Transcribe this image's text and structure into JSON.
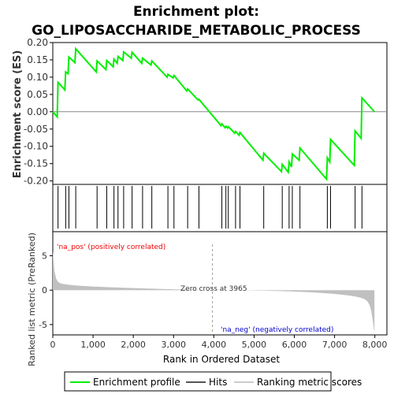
{
  "chart_data": {
    "type": "line",
    "title_line1": "Enrichment plot:",
    "title_line2": "GO_LIPOSACCHARIDE_METABOLIC_PROCESS",
    "es_ylabel": "Enrichment score (ES)",
    "rank_ylabel": "Ranked list metric (PreRanked)",
    "xlabel": "Rank in Ordered Dataset",
    "es_ylim": [
      -0.21,
      0.2
    ],
    "es_yticks": [
      "0.20",
      "0.15",
      "0.10",
      "0.05",
      "0.00",
      "-0.05",
      "-0.10",
      "-0.15",
      "-0.20"
    ],
    "es_ytick_values": [
      0.2,
      0.15,
      0.1,
      0.05,
      0.0,
      -0.05,
      -0.1,
      -0.15,
      -0.2
    ],
    "rank_ylim": [
      -6.5,
      8.5
    ],
    "rank_yticks": [
      "5",
      "0",
      "-5"
    ],
    "rank_ytick_values": [
      5,
      0,
      -5
    ],
    "xlim": [
      0,
      8300
    ],
    "xticks": [
      "0",
      "1,000",
      "2,000",
      "3,000",
      "4,000",
      "5,000",
      "6,000",
      "7,000",
      "8,000"
    ],
    "xtick_values": [
      0,
      1000,
      2000,
      3000,
      4000,
      5000,
      6000,
      7000,
      8000
    ],
    "hits": [
      130,
      320,
      400,
      570,
      1100,
      1340,
      1520,
      1620,
      1760,
      1970,
      2230,
      2460,
      2860,
      3010,
      3350,
      3630,
      4200,
      4300,
      4360,
      4540,
      4650,
      5240,
      5700,
      5870,
      5950,
      6140,
      6820,
      6900,
      7510,
      7680
    ],
    "enrichment_profile": [
      [
        0,
        0.0
      ],
      [
        110,
        -0.015
      ],
      [
        130,
        0.085
      ],
      [
        300,
        0.063
      ],
      [
        320,
        0.115
      ],
      [
        380,
        0.11
      ],
      [
        400,
        0.158
      ],
      [
        550,
        0.142
      ],
      [
        570,
        0.182
      ],
      [
        1080,
        0.115
      ],
      [
        1100,
        0.147
      ],
      [
        1320,
        0.122
      ],
      [
        1340,
        0.148
      ],
      [
        1500,
        0.13
      ],
      [
        1520,
        0.152
      ],
      [
        1600,
        0.14
      ],
      [
        1620,
        0.16
      ],
      [
        1740,
        0.148
      ],
      [
        1760,
        0.173
      ],
      [
        1950,
        0.155
      ],
      [
        1970,
        0.172
      ],
      [
        2210,
        0.14
      ],
      [
        2230,
        0.155
      ],
      [
        2440,
        0.135
      ],
      [
        2460,
        0.147
      ],
      [
        2840,
        0.1
      ],
      [
        2860,
        0.108
      ],
      [
        2990,
        0.098
      ],
      [
        3010,
        0.105
      ],
      [
        3330,
        0.06
      ],
      [
        3350,
        0.066
      ],
      [
        3610,
        0.034
      ],
      [
        3630,
        0.036
      ],
      [
        4180,
        -0.04
      ],
      [
        4200,
        -0.035
      ],
      [
        4280,
        -0.046
      ],
      [
        4300,
        -0.042
      ],
      [
        4340,
        -0.047
      ],
      [
        4360,
        -0.043
      ],
      [
        4520,
        -0.062
      ],
      [
        4540,
        -0.057
      ],
      [
        4630,
        -0.068
      ],
      [
        4650,
        -0.06
      ],
      [
        5220,
        -0.14
      ],
      [
        5240,
        -0.12
      ],
      [
        5680,
        -0.173
      ],
      [
        5700,
        -0.152
      ],
      [
        5850,
        -0.175
      ],
      [
        5870,
        -0.145
      ],
      [
        5930,
        -0.16
      ],
      [
        5950,
        -0.122
      ],
      [
        6120,
        -0.14
      ],
      [
        6140,
        -0.105
      ],
      [
        6800,
        -0.195
      ],
      [
        6820,
        -0.133
      ],
      [
        6880,
        -0.145
      ],
      [
        6900,
        -0.08
      ],
      [
        7490,
        -0.155
      ],
      [
        7510,
        -0.055
      ],
      [
        7660,
        -0.077
      ],
      [
        7680,
        0.04
      ],
      [
        7990,
        0.0
      ]
    ],
    "zero_cross_label": "Zero cross at 3965",
    "zero_cross": 3965,
    "pos_label": "'na_pos' (positively correlated)",
    "neg_label": "'na_neg' (negatively correlated)",
    "total_genes": 7990,
    "legend": [
      "Enrichment profile",
      "Hits",
      "Ranking metric scores"
    ],
    "colors": {
      "profile": "#00ee00",
      "hits": "#000000",
      "metric": "#c0c0c0",
      "pos_text": "#ee0000",
      "neg_text": "#0000cc",
      "grid": "#d8d8d8",
      "zero_line": "#a0a0a0"
    }
  }
}
